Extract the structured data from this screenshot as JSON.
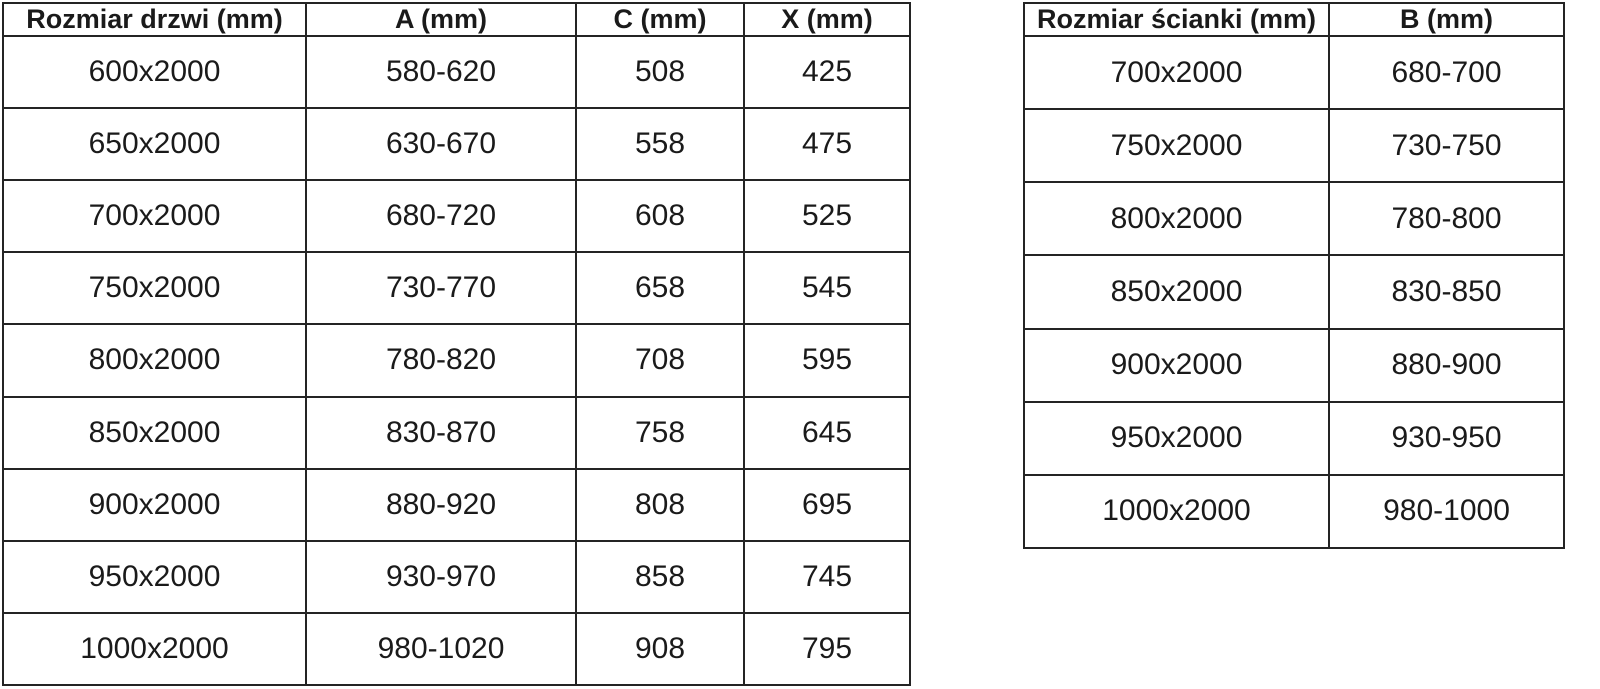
{
  "door_table": {
    "headers": [
      "Rozmiar drzwi (mm)",
      "A (mm)",
      "C (mm)",
      "X (mm)"
    ],
    "rows": [
      [
        "600x2000",
        "580-620",
        "508",
        "425"
      ],
      [
        "650x2000",
        "630-670",
        "558",
        "475"
      ],
      [
        "700x2000",
        "680-720",
        "608",
        "525"
      ],
      [
        "750x2000",
        "730-770",
        "658",
        "545"
      ],
      [
        "800x2000",
        "780-820",
        "708",
        "595"
      ],
      [
        "850x2000",
        "830-870",
        "758",
        "645"
      ],
      [
        "900x2000",
        "880-920",
        "808",
        "695"
      ],
      [
        "950x2000",
        "930-970",
        "858",
        "745"
      ],
      [
        "1000x2000",
        "980-1020",
        "908",
        "795"
      ]
    ]
  },
  "wall_table": {
    "headers": [
      "Rozmiar ścianki (mm)",
      "B (mm)"
    ],
    "rows": [
      [
        "700x2000",
        "680-700"
      ],
      [
        "750x2000",
        "730-750"
      ],
      [
        "800x2000",
        "780-800"
      ],
      [
        "850x2000",
        "830-850"
      ],
      [
        "900x2000",
        "880-900"
      ],
      [
        "950x2000",
        "930-950"
      ],
      [
        "1000x2000",
        "980-1000"
      ]
    ]
  },
  "colors": {
    "text": "#1a1a1a",
    "border": "#242424",
    "background": "#ffffff"
  }
}
